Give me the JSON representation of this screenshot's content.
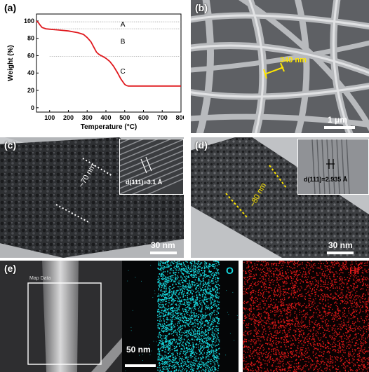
{
  "panel_a": {
    "label": "(a)",
    "chart_data": {
      "type": "line",
      "title": "",
      "xlabel": "Temperature (°C)",
      "ylabel": "Weight (%)",
      "xlim": [
        30,
        800
      ],
      "ylim": [
        -5,
        108
      ],
      "x_ticks": [
        "100",
        "200",
        "300",
        "400",
        "500",
        "600",
        "700",
        "800"
      ],
      "y_ticks": [
        "0",
        "20",
        "40",
        "60",
        "80",
        "100"
      ],
      "series": [
        {
          "color": "#e0191e",
          "x": [
            30,
            40,
            50,
            60,
            80,
            100,
            150,
            200,
            250,
            280,
            300,
            320,
            340,
            350,
            360,
            370,
            380,
            400,
            420,
            440,
            460,
            480,
            500,
            510,
            520,
            530,
            540,
            600,
            700,
            800
          ],
          "y": [
            100,
            98,
            95,
            92.5,
            91,
            90.5,
            89.5,
            88.5,
            86.5,
            84.5,
            81,
            76,
            68,
            64,
            62,
            60.5,
            59.5,
            57,
            53.5,
            48,
            41,
            33,
            27,
            25.5,
            25,
            25,
            25,
            25,
            25,
            25
          ]
        }
      ],
      "reference_lines_y": [
        99,
        91,
        59
      ],
      "region_labels": [
        {
          "text": "A",
          "x": 490,
          "y": 96
        },
        {
          "text": "B",
          "x": 490,
          "y": 76
        },
        {
          "text": "C",
          "x": 490,
          "y": 42
        }
      ]
    }
  },
  "panel_b": {
    "label": "(b)",
    "measurement": "340 nm",
    "scale": "1 μm"
  },
  "panel_c": {
    "label": "(c)",
    "diameter": "~70 nm",
    "d_spacing": "d(111)=3.1 Å",
    "scale": "30 nm"
  },
  "panel_d": {
    "label": "(d)",
    "diameter": "~80 nm",
    "d_spacing": "d(111)=2.935 Å",
    "scale": "30 nm"
  },
  "panel_e": {
    "label": "(e)",
    "box_label": "Map Data",
    "scale": "50 nm",
    "map_o": {
      "element": "O",
      "color": "#16d6dc"
    },
    "map_hf": {
      "element": "Hf",
      "color": "#d81818"
    }
  }
}
